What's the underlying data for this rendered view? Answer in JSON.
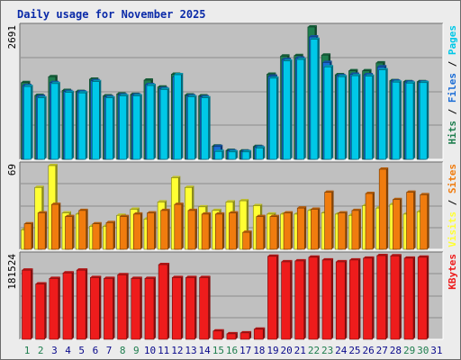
{
  "title": "Daily usage for November 2025",
  "chart_data": [
    {
      "type": "bar",
      "panel": "pages-files-hits",
      "ymax_label": "2691",
      "ylim": [
        0,
        2691
      ],
      "legend": [
        {
          "label": "Pages",
          "color": "#00c8e8"
        },
        {
          "label": "Files",
          "color": "#1a6cd6"
        },
        {
          "label": "Hits",
          "color": "#1e7e4e"
        }
      ],
      "categories": [
        "1",
        "2",
        "3",
        "4",
        "5",
        "6",
        "7",
        "8",
        "9",
        "10",
        "11",
        "12",
        "13",
        "14",
        "15",
        "16",
        "17",
        "18",
        "19",
        "20",
        "21",
        "22",
        "23",
        "24",
        "25",
        "26",
        "27",
        "28",
        "29",
        "30",
        "31"
      ],
      "series": [
        {
          "name": "Hits",
          "values": [
            1560,
            1300,
            1680,
            1400,
            1380,
            1630,
            1290,
            1330,
            1320,
            1610,
            1470,
            1730,
            1310,
            1290,
            270,
            180,
            170,
            260,
            1730,
            2100,
            2110,
            2691,
            2120,
            1720,
            1800,
            1800,
            1960,
            1600,
            1580,
            1580,
            null
          ]
        },
        {
          "name": "Files",
          "values": [
            1500,
            1280,
            1560,
            1380,
            1370,
            1600,
            1270,
            1310,
            1310,
            1520,
            1440,
            1680,
            1290,
            1270,
            260,
            170,
            160,
            250,
            1690,
            2030,
            2060,
            2490,
            1970,
            1700,
            1730,
            1720,
            1880,
            1590,
            1570,
            1570,
            null
          ]
        },
        {
          "name": "Pages",
          "values": [
            1480,
            1250,
            1540,
            1360,
            1350,
            1580,
            1250,
            1290,
            1290,
            1500,
            1420,
            1720,
            1270,
            1250,
            160,
            150,
            150,
            230,
            1650,
            2000,
            2030,
            2440,
            1880,
            1680,
            1700,
            1690,
            1820,
            1570,
            1550,
            1560,
            null
          ]
        }
      ]
    },
    {
      "type": "bar",
      "panel": "sites-visits",
      "ymax_label": "69",
      "ylim": [
        0,
        69
      ],
      "legend": [
        {
          "label": "Sites",
          "color": "#f07c0e"
        },
        {
          "label": "Visits",
          "color": "#ffff33"
        }
      ],
      "categories": [
        "1",
        "2",
        "3",
        "4",
        "5",
        "6",
        "7",
        "8",
        "9",
        "10",
        "11",
        "12",
        "13",
        "14",
        "15",
        "16",
        "17",
        "18",
        "19",
        "20",
        "21",
        "22",
        "23",
        "24",
        "25",
        "26",
        "27",
        "28",
        "29",
        "30",
        "31"
      ],
      "series": [
        {
          "name": "Visits",
          "values": [
            16,
            51,
            69,
            30,
            29,
            19,
            19,
            28,
            33,
            25,
            39,
            59,
            51,
            35,
            32,
            39,
            40,
            36,
            29,
            29,
            29,
            32,
            30,
            29,
            28,
            36,
            34,
            37,
            29,
            31,
            null
          ]
        },
        {
          "name": "Sites",
          "values": [
            21,
            30,
            37,
            27,
            32,
            21,
            22,
            27,
            29,
            30,
            32,
            37,
            32,
            29,
            29,
            30,
            14,
            27,
            27,
            30,
            34,
            33,
            47,
            30,
            32,
            46,
            66,
            41,
            47,
            45,
            null
          ]
        }
      ]
    },
    {
      "type": "bar",
      "panel": "kbytes",
      "ymax_label": "181524",
      "ylim": [
        0,
        181524
      ],
      "legend": [
        {
          "label": "KBytes",
          "color": "#ee1c1c"
        }
      ],
      "categories": [
        "1",
        "2",
        "3",
        "4",
        "5",
        "6",
        "7",
        "8",
        "9",
        "10",
        "11",
        "12",
        "13",
        "14",
        "15",
        "16",
        "17",
        "18",
        "19",
        "20",
        "21",
        "22",
        "23",
        "24",
        "25",
        "26",
        "27",
        "28",
        "29",
        "30",
        "31"
      ],
      "series": [
        {
          "name": "KBytes",
          "values": [
            150000,
            120000,
            132000,
            144000,
            150000,
            134000,
            132000,
            140000,
            132000,
            132000,
            162000,
            134000,
            134000,
            134000,
            18000,
            12000,
            14000,
            22000,
            180000,
            168000,
            170000,
            178000,
            172000,
            168000,
            172000,
            176000,
            181524,
            181000,
            176000,
            178000,
            null
          ]
        }
      ]
    }
  ],
  "weekend_days": [
    "1",
    "2",
    "8",
    "9",
    "15",
    "16",
    "22",
    "23",
    "29",
    "30"
  ],
  "colors": {
    "panel_bg": "#c0c0c0",
    "frame": "#ececec",
    "weekday_label": "#0a0a8c",
    "weekend_label": "#1e7e4e",
    "title": "#0a2aa8"
  }
}
